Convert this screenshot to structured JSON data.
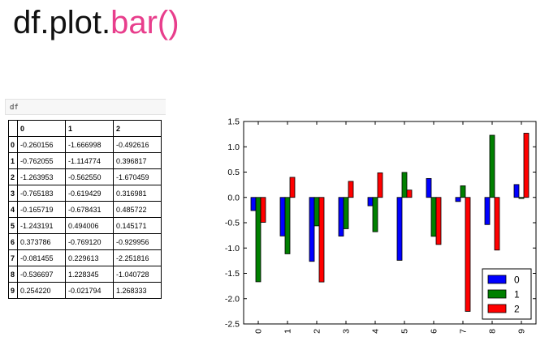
{
  "slide": {
    "title_prefix": "df.plot.",
    "title_highlight": "bar()"
  },
  "colors": {
    "title_highlight": "#e83e8c",
    "series": [
      "#0000ff",
      "#008000",
      "#ff0000"
    ]
  },
  "code_cell": {
    "text": "df"
  },
  "table": {
    "columns": [
      "0",
      "1",
      "2"
    ],
    "rows": [
      {
        "index": "0",
        "values": [
          "-0.260156",
          "-1.666998",
          "-0.492616"
        ]
      },
      {
        "index": "1",
        "values": [
          "-0.762055",
          "-1.114774",
          "0.396817"
        ]
      },
      {
        "index": "2",
        "values": [
          "-1.263953",
          "-0.562550",
          "-1.670459"
        ]
      },
      {
        "index": "3",
        "values": [
          "-0.765183",
          "-0.619429",
          "0.316981"
        ]
      },
      {
        "index": "4",
        "values": [
          "-0.165719",
          "-0.678431",
          "0.485722"
        ]
      },
      {
        "index": "5",
        "values": [
          "-1.243191",
          "0.494006",
          "0.145171"
        ]
      },
      {
        "index": "6",
        "values": [
          "0.373786",
          "-0.769120",
          "-0.929956"
        ]
      },
      {
        "index": "7",
        "values": [
          "-0.081455",
          "0.229613",
          "-2.251816"
        ]
      },
      {
        "index": "8",
        "values": [
          "-0.536697",
          "1.228345",
          "-1.040728"
        ]
      },
      {
        "index": "9",
        "values": [
          "0.254220",
          "-0.021794",
          "1.268333"
        ]
      }
    ]
  },
  "chart_data": {
    "type": "bar",
    "title": "",
    "xlabel": "",
    "ylabel": "",
    "categories": [
      "0",
      "1",
      "2",
      "3",
      "4",
      "5",
      "6",
      "7",
      "8",
      "9"
    ],
    "series": [
      {
        "name": "0",
        "values": [
          -0.260156,
          -0.762055,
          -1.263953,
          -0.765183,
          -0.165719,
          -1.243191,
          0.373786,
          -0.081455,
          -0.536697,
          0.25422
        ]
      },
      {
        "name": "1",
        "values": [
          -1.666998,
          -1.114774,
          -0.56255,
          -0.619429,
          -0.678431,
          0.494006,
          -0.76912,
          0.229613,
          1.228345,
          -0.021794
        ]
      },
      {
        "name": "2",
        "values": [
          -0.492616,
          0.396817,
          -1.670459,
          0.316981,
          0.485722,
          0.145171,
          -0.929956,
          -2.251816,
          -1.040728,
          1.268333
        ]
      }
    ],
    "ylim": [
      -2.5,
      1.5
    ],
    "yticks": [
      "1.5",
      "1.0",
      "0.5",
      "0.0",
      "-0.5",
      "-1.0",
      "-1.5",
      "-2.0",
      "-2.5"
    ],
    "grid": false,
    "legend_position": "lower-right",
    "x_tick_rotation": "vertical"
  }
}
